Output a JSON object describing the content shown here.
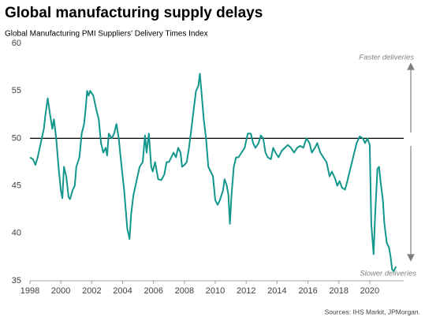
{
  "chart_data": {
    "type": "line",
    "title": "Global manufacturing supply delays",
    "subtitle": "Global Manufacturing PMI Suppliers' Delivery Times Index",
    "annotations": [
      "Faster deliveries",
      "Slower deliveries"
    ],
    "source": "Sources: IHS Markit, JPMorgan.",
    "reference_line": 50,
    "xlim": [
      1998,
      2022.2
    ],
    "xticks": [
      1998,
      2000,
      2002,
      2004,
      2006,
      2008,
      2010,
      2012,
      2014,
      2016,
      2018,
      2020
    ],
    "ylim": [
      35,
      60
    ],
    "yticks": [
      35,
      40,
      45,
      50,
      55,
      60
    ],
    "x": [
      1998.0,
      1998.2,
      1998.35,
      1998.5,
      1998.7,
      1998.9,
      1999.0,
      1999.15,
      1999.3,
      1999.45,
      1999.55,
      1999.7,
      1999.85,
      2000.0,
      2000.1,
      2000.2,
      2000.35,
      2000.5,
      2000.6,
      2000.75,
      2000.9,
      2001.0,
      2001.2,
      2001.35,
      2001.5,
      2001.6,
      2001.7,
      2001.8,
      2001.9,
      2002.1,
      2002.3,
      2002.45,
      2002.6,
      2002.75,
      2002.9,
      2003.0,
      2003.1,
      2003.3,
      2003.45,
      2003.6,
      2003.75,
      2003.9,
      2004.1,
      2004.3,
      2004.45,
      2004.55,
      2004.7,
      2004.9,
      2005.1,
      2005.3,
      2005.45,
      2005.55,
      2005.7,
      2005.85,
      2005.95,
      2006.1,
      2006.3,
      2006.5,
      2006.7,
      2006.85,
      2007.0,
      2007.15,
      2007.3,
      2007.45,
      2007.6,
      2007.75,
      2007.85,
      2008.0,
      2008.15,
      2008.3,
      2008.45,
      2008.6,
      2008.75,
      2008.9,
      2009.0,
      2009.1,
      2009.25,
      2009.4,
      2009.55,
      2009.7,
      2009.85,
      2010.0,
      2010.15,
      2010.3,
      2010.5,
      2010.6,
      2010.75,
      2010.85,
      2010.95,
      2011.05,
      2011.2,
      2011.35,
      2011.5,
      2011.7,
      2011.9,
      2012.1,
      2012.3,
      2012.45,
      2012.6,
      2012.8,
      2012.95,
      2013.1,
      2013.25,
      2013.4,
      2013.6,
      2013.75,
      2013.9,
      2014.1,
      2014.3,
      2014.5,
      2014.7,
      2014.9,
      2015.1,
      2015.3,
      2015.5,
      2015.7,
      2015.9,
      2016.1,
      2016.25,
      2016.45,
      2016.6,
      2016.8,
      2017.0,
      2017.2,
      2017.4,
      2017.55,
      2017.75,
      2017.9,
      2018.05,
      2018.2,
      2018.4,
      2018.55,
      2018.7,
      2018.85,
      2019.0,
      2019.15,
      2019.35,
      2019.55,
      2019.7,
      2019.85,
      2020.0,
      2020.1,
      2020.25,
      2020.35,
      2020.5,
      2020.6,
      2020.7,
      2020.85,
      2020.95,
      2021.1,
      2021.25,
      2021.35,
      2021.45,
      2021.55,
      2021.7
    ],
    "series": [
      {
        "color": "#13968c",
        "values": [
          48,
          47.8,
          47.2,
          48,
          49.5,
          51,
          52.5,
          54.2,
          52.5,
          51,
          52,
          50,
          47,
          44.5,
          43.7,
          47,
          46,
          43.8,
          43.6,
          44.5,
          45,
          47,
          48,
          50.5,
          51.5,
          53,
          55,
          54.5,
          55,
          54.5,
          53,
          52,
          49.5,
          48.5,
          49,
          48.2,
          50.5,
          50,
          50.5,
          51.5,
          50,
          47.5,
          44.5,
          40.5,
          39.4,
          42,
          44,
          45.5,
          47,
          47.5,
          50.3,
          48.5,
          50.5,
          47,
          46.5,
          47.5,
          45.7,
          45.6,
          46.2,
          47.5,
          47.5,
          48,
          48.5,
          48,
          49,
          48.5,
          47,
          47.2,
          47.5,
          49,
          51,
          53,
          55,
          55.5,
          56.8,
          55,
          52,
          50,
          47,
          46.5,
          46,
          43.5,
          43,
          43.5,
          44.5,
          45.7,
          45,
          44,
          41,
          44,
          47,
          48,
          48,
          48.5,
          49,
          50.5,
          50.5,
          49.5,
          49,
          49.5,
          50.3,
          50,
          48.5,
          48,
          47.8,
          49,
          48.5,
          48,
          48.7,
          49,
          49.3,
          49,
          48.5,
          49,
          49.2,
          49,
          50,
          49.5,
          48.5,
          49,
          49.5,
          48.5,
          48,
          47.5,
          46,
          46.5,
          45.8,
          45,
          45.5,
          44.8,
          44.6,
          45.5,
          46.5,
          47.5,
          48.5,
          49.5,
          50.2,
          50,
          49.5,
          50,
          49.3,
          41,
          37.8,
          42,
          46.8,
          47,
          45.5,
          43.5,
          41,
          39,
          38.5,
          37.5,
          36.2,
          36,
          36.5
        ]
      }
    ]
  }
}
